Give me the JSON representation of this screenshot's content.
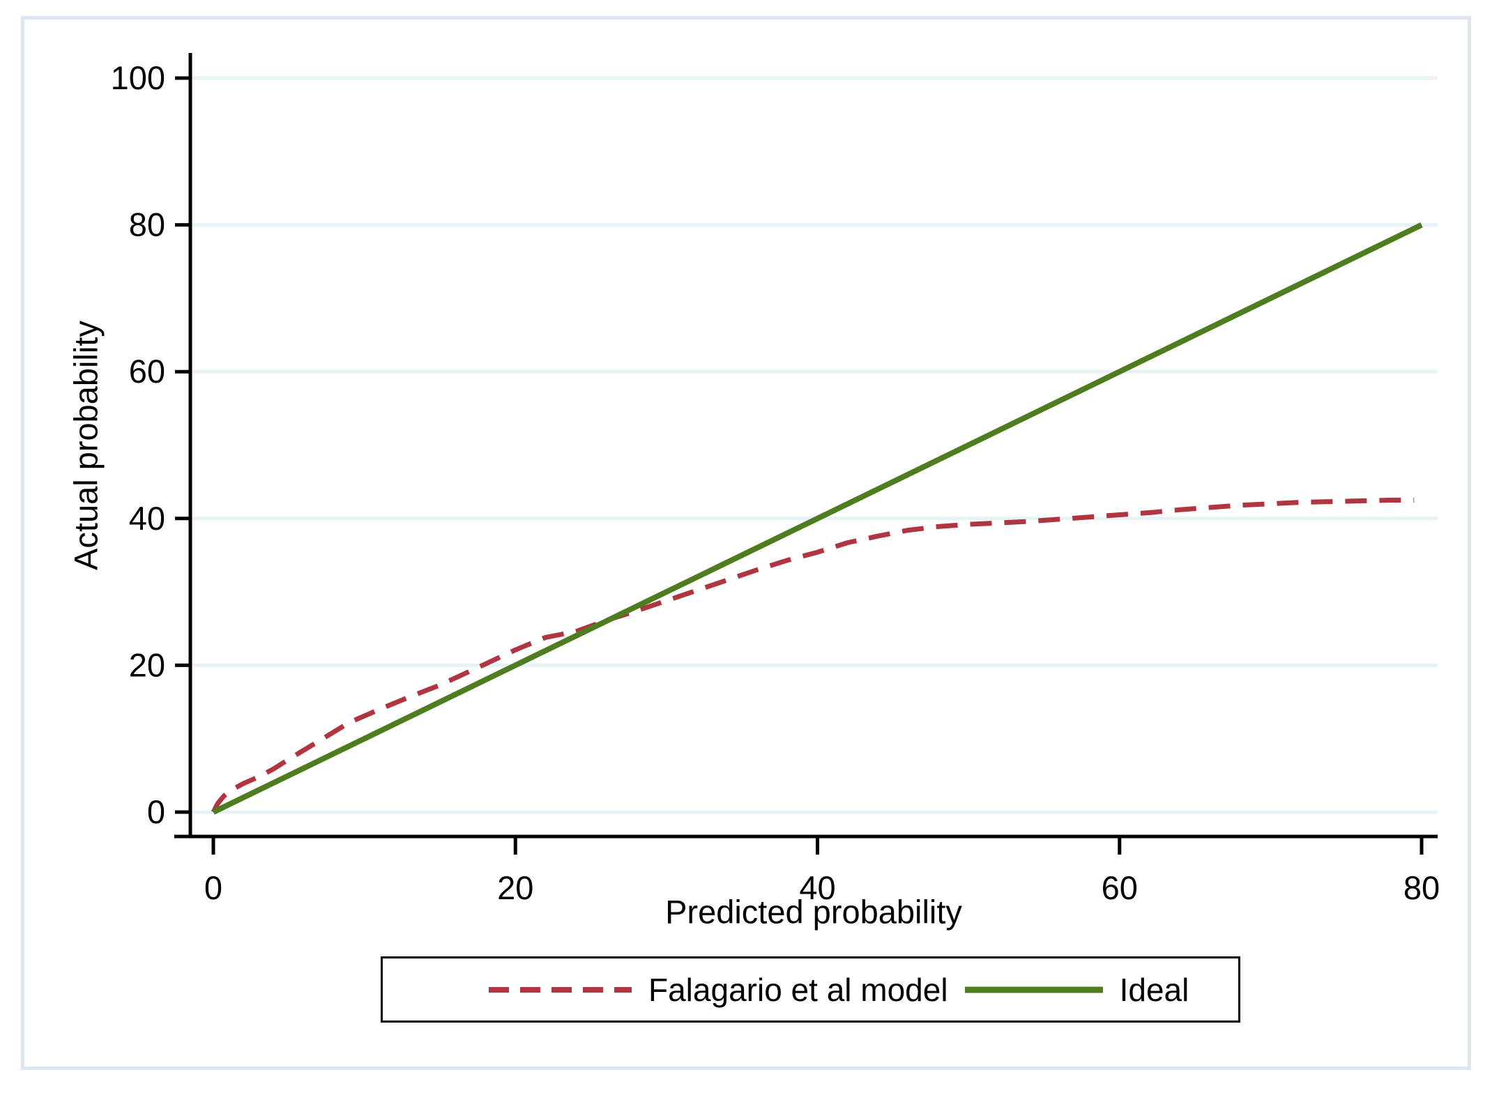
{
  "figure": {
    "background_color": "#ffffff",
    "frame_color": "#dbe8f2"
  },
  "chart_data": {
    "type": "line",
    "title": "",
    "xlabel": "Predicted probability",
    "ylabel": "Actual probability",
    "xlim": [
      0,
      80
    ],
    "ylim": [
      0,
      100
    ],
    "x_ticks": [
      0,
      20,
      40,
      60,
      80
    ],
    "y_ticks": [
      0,
      20,
      40,
      60,
      80,
      100
    ],
    "grid": "horizontal-only",
    "gridline_color": "#e7f2f6",
    "axis_color": "#000000",
    "legend_position": "bottom-center-boxed",
    "series": [
      {
        "name": "Falagario et al model",
        "color": "#b13540",
        "style": "dashed",
        "points": [
          [
            0,
            0
          ],
          [
            0.3,
            1.2
          ],
          [
            0.7,
            2.2
          ],
          [
            1.2,
            3.0
          ],
          [
            2,
            3.9
          ],
          [
            3,
            4.8
          ],
          [
            4,
            5.9
          ],
          [
            5,
            7.2
          ],
          [
            7,
            9.7
          ],
          [
            9,
            12.2
          ],
          [
            11,
            14.0
          ],
          [
            13,
            15.7
          ],
          [
            15,
            17.3
          ],
          [
            17,
            19.2
          ],
          [
            20,
            22.1
          ],
          [
            22,
            23.8
          ],
          [
            24,
            24.6
          ],
          [
            26,
            26.1
          ],
          [
            28,
            27.4
          ],
          [
            30,
            28.8
          ],
          [
            32,
            30.2
          ],
          [
            34,
            31.6
          ],
          [
            36,
            33.0
          ],
          [
            38,
            34.3
          ],
          [
            40,
            35.4
          ],
          [
            42,
            36.7
          ],
          [
            44,
            37.6
          ],
          [
            46,
            38.4
          ],
          [
            48,
            38.9
          ],
          [
            50,
            39.2
          ],
          [
            52,
            39.4
          ],
          [
            54,
            39.6
          ],
          [
            56,
            39.9
          ],
          [
            58,
            40.2
          ],
          [
            60,
            40.5
          ],
          [
            62,
            40.8
          ],
          [
            64,
            41.2
          ],
          [
            66,
            41.5
          ],
          [
            68,
            41.8
          ],
          [
            70,
            42.0
          ],
          [
            72,
            42.2
          ],
          [
            74,
            42.3
          ],
          [
            76,
            42.4
          ],
          [
            78,
            42.5
          ],
          [
            79.5,
            42.5
          ]
        ]
      },
      {
        "name": "Ideal",
        "color": "#4e7d20",
        "style": "solid",
        "points": [
          [
            0,
            0
          ],
          [
            80,
            80
          ]
        ]
      }
    ]
  }
}
